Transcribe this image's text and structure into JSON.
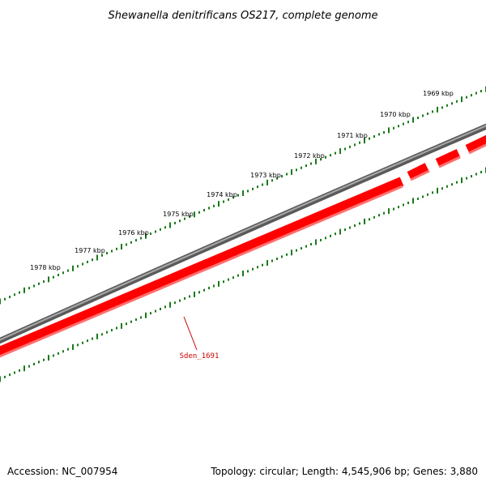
{
  "title": "Shewanella denitrificans OS217, complete genome",
  "accession": "Accession: NC_007954",
  "summary": "Topology: circular; Length: 4,545,906 bp; Genes: 3,880",
  "gene_label": "Sden_1691",
  "scale_labels": [
    "1969 kbp",
    "1970 kbp",
    "1971 kbp",
    "1972 kbp",
    "1973 kbp",
    "1974 kbp",
    "1975 kbp",
    "1976 kbp",
    "1977 kbp",
    "1978 kbp"
  ],
  "colors": {
    "backbone": "#808080",
    "gene": "#ff0000",
    "gene_light": "#ff6b6b",
    "ticks": "#1a7a1a",
    "label": "#cc0000"
  }
}
